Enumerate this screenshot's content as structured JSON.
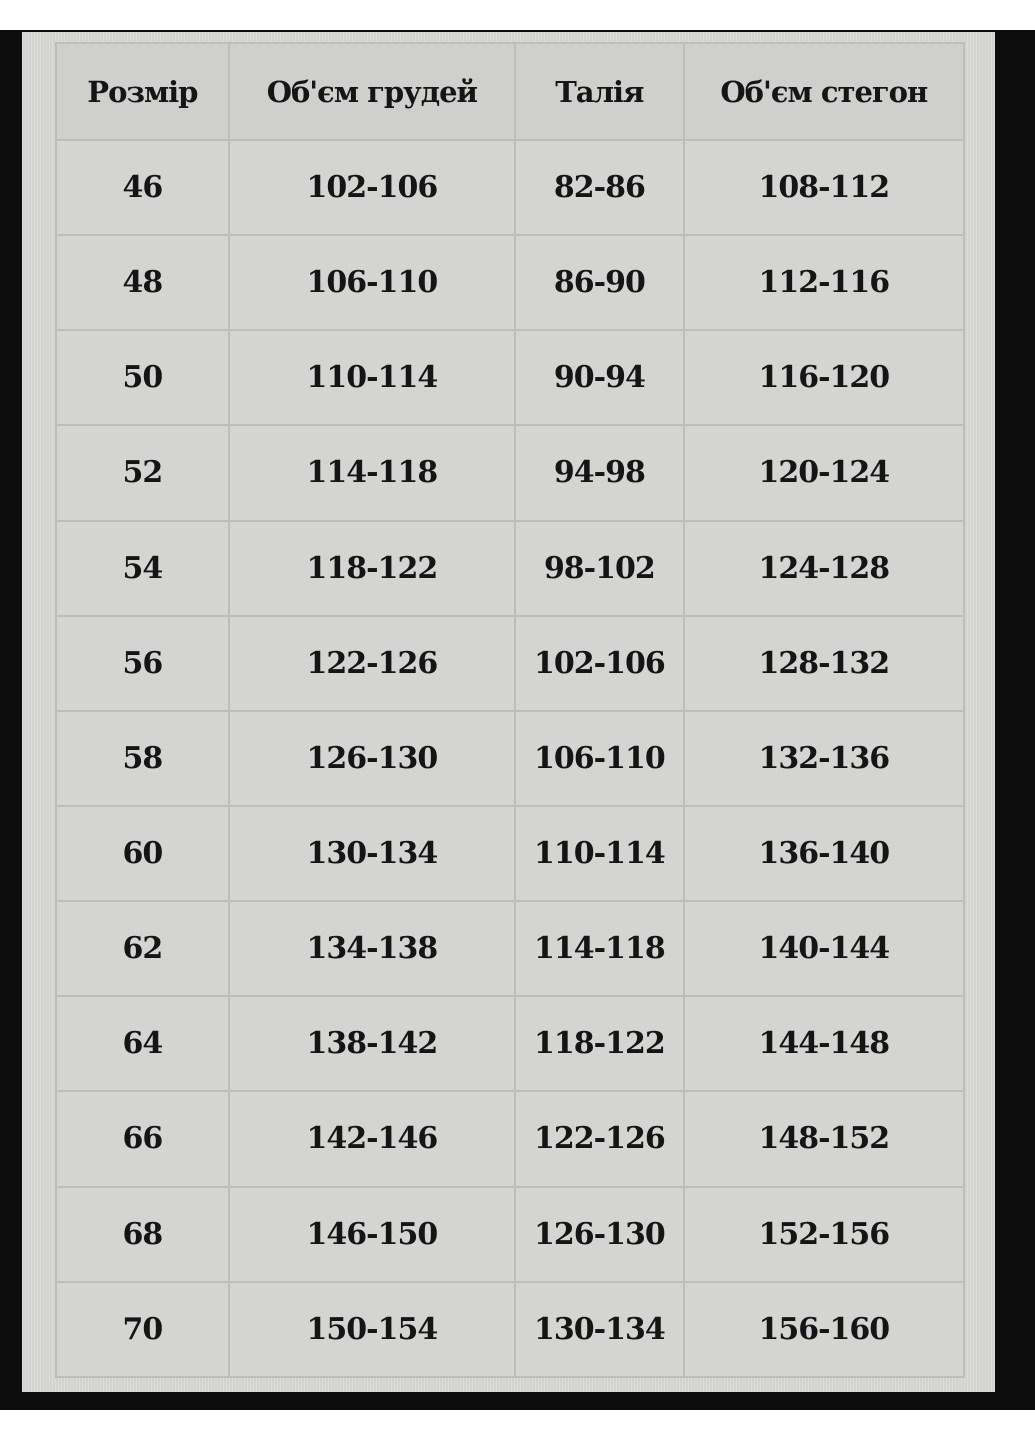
{
  "table": {
    "headers": [
      "Розмір",
      "Об'єм грудей",
      "Талія",
      "Об'єм стегон"
    ],
    "rows": [
      [
        "46",
        "102-106",
        "82-86",
        "108-112"
      ],
      [
        "48",
        "106-110",
        "86-90",
        "112-116"
      ],
      [
        "50",
        "110-114",
        "90-94",
        "116-120"
      ],
      [
        "52",
        "114-118",
        "94-98",
        "120-124"
      ],
      [
        "54",
        "118-122",
        "98-102",
        "124-128"
      ],
      [
        "56",
        "122-126",
        "102-106",
        "128-132"
      ],
      [
        "58",
        "126-130",
        "106-110",
        "132-136"
      ],
      [
        "60",
        "130-134",
        "110-114",
        "136-140"
      ],
      [
        "62",
        "134-138",
        "114-118",
        "140-144"
      ],
      [
        "64",
        "138-142",
        "118-122",
        "144-148"
      ],
      [
        "66",
        "142-146",
        "122-126",
        "148-152"
      ],
      [
        "68",
        "146-150",
        "126-130",
        "152-156"
      ],
      [
        "70",
        "150-154",
        "130-134",
        "156-160"
      ]
    ]
  }
}
